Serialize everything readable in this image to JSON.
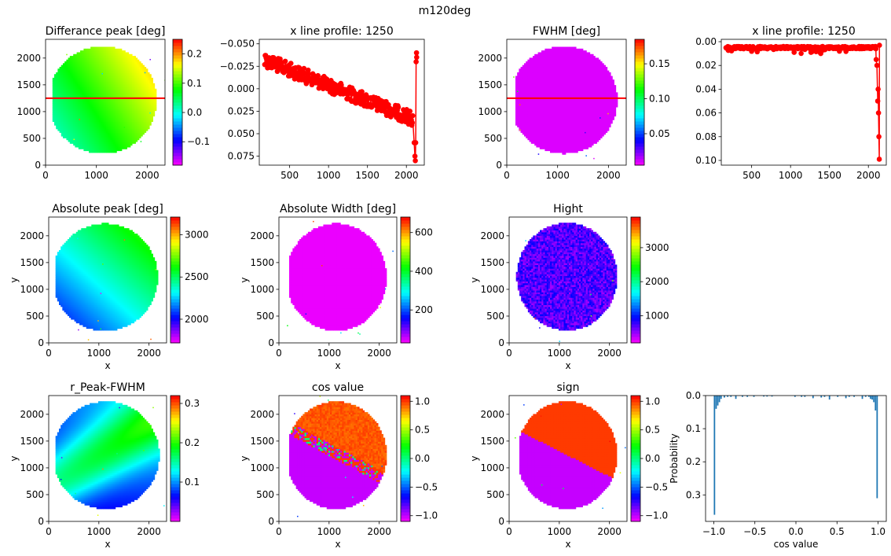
{
  "suptitle": "m120deg",
  "colors": {
    "line_profile": "#ff0000",
    "hist_bar": "#1f77b4",
    "cut_line": "#ff0000"
  },
  "colormap": "gist_rainbow_r",
  "chart_data": [
    {
      "id": "diff-peak",
      "type": "heatmap",
      "title": "Differance peak [deg]",
      "xlabel": "",
      "ylabel": "",
      "xlim": [
        0,
        2350
      ],
      "ylim": [
        2350,
        0
      ],
      "xticks": [
        0,
        1000,
        2000
      ],
      "yticks": [
        0,
        500,
        1000,
        1500,
        2000
      ],
      "colorbar": {
        "min": -0.18,
        "max": 0.25,
        "ticks": [
          -0.1,
          0.0,
          0.1,
          0.2
        ],
        "ticklabels": [
          "−0.1",
          "0.0",
          "0.1",
          "0.2"
        ]
      },
      "disk": {
        "cx": 1120,
        "cy": 1220,
        "rx": 1060,
        "ry": 1000,
        "ycut_top": 230,
        "ycut_bot": 2200,
        "xcut_left": 150,
        "xcut_right": 2240
      },
      "field": {
        "base": -0.02,
        "gx": 6e-05,
        "gy": 4e-05
      },
      "hline_y": 1250
    },
    {
      "id": "diff-profile",
      "type": "line",
      "title": "x line profile: 1250",
      "xlabel": "",
      "ylabel": "",
      "xlim": [
        110,
        2230
      ],
      "ylim": [
        -0.055,
        0.085
      ],
      "xticks": [
        500,
        1000,
        1500,
        2000
      ],
      "yticks": [
        -0.05,
        -0.025,
        0.0,
        0.025,
        0.05,
        0.075
      ],
      "yticklabels": [
        "−0.050",
        "−0.025",
        "0.000",
        "0.025",
        "0.050",
        "0.075"
      ],
      "x_start": 180,
      "x_end": 2130,
      "trend": {
        "y_at_start": -0.032,
        "y_at_end": 0.035,
        "noise": 0.008
      },
      "tail": [
        [
          2080,
          0.03
        ],
        [
          2100,
          0.06
        ],
        [
          2110,
          0.075
        ],
        [
          2115,
          0.08
        ],
        [
          2120,
          0.06
        ],
        [
          2125,
          -0.03
        ],
        [
          2130,
          -0.04
        ],
        [
          2132,
          -0.035
        ]
      ]
    },
    {
      "id": "fwhm",
      "type": "heatmap",
      "title": "FWHM [deg]",
      "xlabel": "",
      "ylabel": "",
      "xlim": [
        0,
        2350
      ],
      "ylim": [
        2350,
        0
      ],
      "xticks": [
        0,
        1000,
        2000
      ],
      "yticks": [
        0,
        500,
        1000,
        1500,
        2000
      ],
      "colorbar": {
        "min": 0.005,
        "max": 0.185,
        "ticks": [
          0.05,
          0.1,
          0.15
        ],
        "ticklabels": [
          "0.05",
          "0.10",
          "0.15"
        ]
      },
      "disk": {
        "cx": 1120,
        "cy": 1220,
        "rx": 1050,
        "ry": 1000,
        "ycut_top": 220,
        "ycut_bot": 2210,
        "xcut_left": 160,
        "xcut_right": 2260
      },
      "field": {
        "base": 0.01,
        "gx": 0.0,
        "gy": 0.0
      },
      "hline_y": 1250
    },
    {
      "id": "fwhm-profile",
      "type": "line",
      "title": "x line profile: 1250",
      "xlabel": "",
      "ylabel": "",
      "xlim": [
        110,
        2230
      ],
      "ylim": [
        -0.002,
        0.104
      ],
      "xticks": [
        500,
        1000,
        1500,
        2000
      ],
      "yticks": [
        0.0,
        0.02,
        0.04,
        0.06,
        0.08,
        0.1
      ],
      "yticklabels": [
        "0.00",
        "0.02",
        "0.04",
        "0.06",
        "0.08",
        "0.10"
      ],
      "x_start": 170,
      "x_end": 2130,
      "trend": {
        "y_at_start": 0.004,
        "y_at_end": 0.004,
        "noise": 0.004
      },
      "tail": [
        [
          2100,
          0.015
        ],
        [
          2110,
          0.02
        ],
        [
          2120,
          0.05
        ],
        [
          2125,
          0.04
        ],
        [
          2130,
          0.06
        ],
        [
          2135,
          0.08
        ],
        [
          2140,
          0.099
        ],
        [
          2142,
          0.003
        ]
      ]
    },
    {
      "id": "abs-peak",
      "type": "heatmap",
      "title": "Absolute peak [deg]",
      "xlabel": "x",
      "ylabel": "y",
      "xlim": [
        0,
        2350
      ],
      "ylim": [
        2350,
        0
      ],
      "xticks": [
        0,
        1000,
        2000
      ],
      "yticks": [
        0,
        500,
        1000,
        1500,
        2000
      ],
      "colorbar": {
        "min": 1720,
        "max": 3210,
        "ticks": [
          2000,
          2500,
          3000
        ],
        "ticklabels": [
          "2000",
          "2500",
          "3000"
        ]
      },
      "disk": {
        "cx": 1120,
        "cy": 1230,
        "rx": 1050,
        "ry": 1000,
        "ycut_top": 230,
        "ycut_bot": 2230,
        "xcut_left": 140,
        "xcut_right": 2260
      },
      "field": {
        "base": 1930,
        "gx": 0.17,
        "gy": 0.2
      }
    },
    {
      "id": "abs-width",
      "type": "heatmap",
      "title": "Absolute Width [deg]",
      "xlabel": "x",
      "ylabel": "y",
      "xlim": [
        0,
        2350
      ],
      "ylim": [
        2350,
        0
      ],
      "xticks": [
        0,
        1000,
        2000
      ],
      "yticks": [
        0,
        500,
        1000,
        1500,
        2000
      ],
      "colorbar": {
        "min": 30,
        "max": 680,
        "ticks": [
          200,
          400,
          600
        ],
        "ticklabels": [
          "200",
          "400",
          "600"
        ]
      },
      "disk": {
        "cx": 1140,
        "cy": 1230,
        "rx": 1000,
        "ry": 1000,
        "ycut_top": 230,
        "ycut_bot": 2230,
        "xcut_left": 200,
        "xcut_right": 2260
      },
      "field": {
        "base": 40,
        "gx": 0.0,
        "gy": 0.0
      }
    },
    {
      "id": "hight",
      "type": "heatmap",
      "title": "Hight",
      "xlabel": "x",
      "ylabel": "y",
      "xlim": [
        0,
        2350
      ],
      "ylim": [
        2350,
        0
      ],
      "xticks": [
        0,
        1000,
        2000
      ],
      "yticks": [
        0,
        500,
        1000,
        1500,
        2000
      ],
      "colorbar": {
        "min": 200,
        "max": 3900,
        "ticks": [
          1000,
          2000,
          3000
        ],
        "ticklabels": [
          "1000",
          "2000",
          "3000"
        ]
      },
      "disk": {
        "cx": 1150,
        "cy": 1240,
        "rx": 1000,
        "ry": 1000,
        "ycut_top": 240,
        "ycut_bot": 2240,
        "xcut_left": 150,
        "xcut_right": 2260
      },
      "field": {
        "base": 700,
        "gx": 0.0,
        "gy": 0.0,
        "noise": 250
      }
    },
    {
      "id": "r-peak-fwhm",
      "type": "heatmap",
      "title": "r_Peak-FWHM",
      "xlabel": "x",
      "ylabel": "y",
      "xlim": [
        0,
        2350
      ],
      "ylim": [
        2350,
        0
      ],
      "xticks": [
        0,
        1000,
        2000
      ],
      "yticks": [
        0,
        500,
        1000,
        1500,
        2000
      ],
      "colorbar": {
        "min": 0.0,
        "max": 0.32,
        "ticks": [
          0.1,
          0.2,
          0.3
        ],
        "ticklabels": [
          "0.1",
          "0.2",
          "0.3"
        ]
      },
      "disk": {
        "cx": 1140,
        "cy": 1240,
        "rx": 1060,
        "ry": 1000,
        "ycut_top": 230,
        "ycut_bot": 2240,
        "xcut_left": 130,
        "xcut_right": 2260
      },
      "field": {
        "type": "band",
        "base": 0.04,
        "amp": 0.1,
        "gx": -0.3,
        "gy": 0.5,
        "c0": 1250
      }
    },
    {
      "id": "cos-value",
      "type": "heatmap",
      "title": "cos value",
      "xlabel": "x",
      "ylabel": "y",
      "xlim": [
        0,
        2350
      ],
      "ylim": [
        2350,
        0
      ],
      "xticks": [
        0,
        1000,
        2000
      ],
      "yticks": [
        0,
        500,
        1000,
        1500,
        2000
      ],
      "colorbar": {
        "min": -1.1,
        "max": 1.1,
        "ticks": [
          -1.0,
          -0.5,
          0.0,
          0.5,
          1.0
        ],
        "ticklabels": [
          "−1.0",
          "−0.5",
          "0.0",
          "0.5",
          "1.0"
        ]
      },
      "disk": {
        "cx": 1140,
        "cy": 1240,
        "rx": 1000,
        "ry": 1000,
        "ycut_top": 240,
        "ycut_bot": 2240,
        "xcut_left": 200,
        "xcut_right": 2260
      },
      "field": {
        "type": "split",
        "lo": -1.0,
        "hi": 1.0,
        "x0": 200,
        "y0": 1750,
        "x1": 2100,
        "y1": 800,
        "noisy": true
      }
    },
    {
      "id": "sign",
      "type": "heatmap",
      "title": "sign",
      "xlabel": "x",
      "ylabel": "y",
      "xlim": [
        0,
        2350
      ],
      "ylim": [
        2350,
        0
      ],
      "xticks": [
        0,
        1000,
        2000
      ],
      "yticks": [
        0,
        500,
        1000,
        1500,
        2000
      ],
      "colorbar": {
        "min": -1.1,
        "max": 1.1,
        "ticks": [
          -1.0,
          -0.5,
          0.0,
          0.5,
          1.0
        ],
        "ticklabels": [
          "−1.0",
          "−0.5",
          "0.0",
          "0.5",
          "1.0"
        ]
      },
      "disk": {
        "cx": 1150,
        "cy": 1240,
        "rx": 1000,
        "ry": 1000,
        "ycut_top": 240,
        "ycut_bot": 2240,
        "xcut_left": 200,
        "xcut_right": 2260
      },
      "field": {
        "type": "split",
        "lo": -1.0,
        "hi": 1.0,
        "x0": 200,
        "y0": 1700,
        "x1": 2100,
        "y1": 800,
        "noisy": false
      }
    },
    {
      "id": "cos-hist",
      "type": "bar",
      "title": "",
      "xlabel": "cos value",
      "ylabel": "Probability",
      "xlim": [
        -1.1,
        1.1
      ],
      "ylim": [
        0,
        0.38
      ],
      "xticks": [
        -1.0,
        -0.5,
        0.0,
        0.5,
        1.0
      ],
      "xticklabels": [
        "−1.0",
        "−0.5",
        "0.0",
        "0.5",
        "1.0"
      ],
      "yticks": [
        0.0,
        0.1,
        0.2,
        0.3
      ],
      "yticklabels": [
        "0.0",
        "0.1",
        "0.2",
        "0.3"
      ],
      "bin_width": 0.02,
      "bins": [
        -1.0,
        -0.98,
        -0.96,
        -0.94,
        -0.92,
        -0.88,
        -0.84,
        -0.8,
        -0.74,
        -0.66,
        -0.6,
        -0.52,
        -0.4,
        -0.36,
        -0.3,
        -0.02,
        0.06,
        0.1,
        0.2,
        0.3,
        0.34,
        0.4,
        0.5,
        0.6,
        0.64,
        0.7,
        0.8,
        0.84,
        0.88,
        0.9,
        0.92,
        0.94,
        0.96,
        0.98
      ],
      "values": [
        0.36,
        0.04,
        0.03,
        0.02,
        0.01,
        0.006,
        0.004,
        0.004,
        0.01,
        0.004,
        0.004,
        0.004,
        0.003,
        0.003,
        0.003,
        0.004,
        0.004,
        0.004,
        0.008,
        0.006,
        0.004,
        0.012,
        0.004,
        0.008,
        0.004,
        0.004,
        0.01,
        0.004,
        0.004,
        0.01,
        0.012,
        0.02,
        0.045,
        0.31
      ]
    }
  ]
}
